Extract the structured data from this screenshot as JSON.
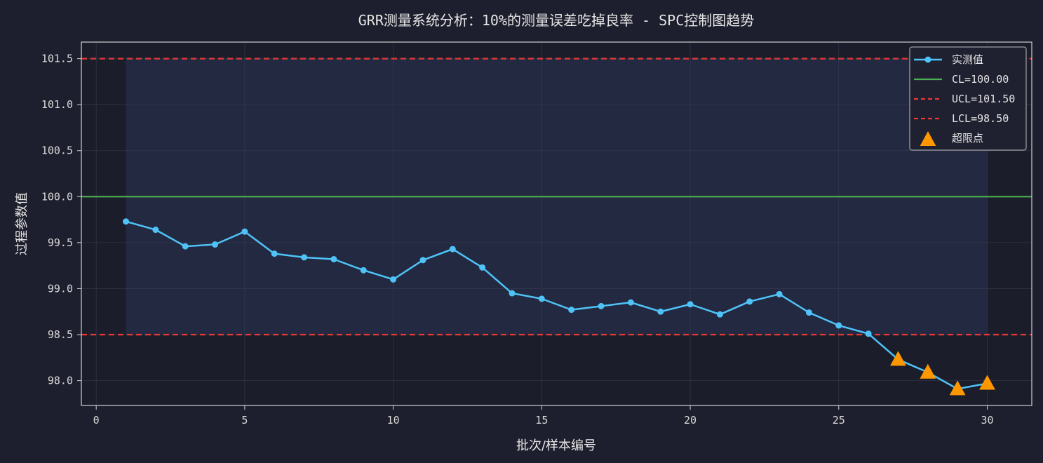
{
  "chart_data": {
    "type": "line",
    "title": "GRR测量系统分析：10%的测量误差吃掉良率 - SPC控制图趋势",
    "xlabel": "批次/样本编号",
    "ylabel": "过程参数值",
    "xlim": [
      -0.5,
      31.5
    ],
    "ylim": [
      97.73,
      101.68
    ],
    "xticks": [
      0,
      5,
      10,
      15,
      20,
      25,
      30
    ],
    "yticks": [
      98.0,
      98.5,
      99.0,
      99.5,
      100.0,
      100.5,
      101.0,
      101.5
    ],
    "xtick_labels": [
      "0",
      "5",
      "10",
      "15",
      "20",
      "25",
      "30"
    ],
    "ytick_labels": [
      "98.0",
      "98.5",
      "99.0",
      "99.5",
      "100.0",
      "100.5",
      "101.0",
      "101.5"
    ],
    "grid": true,
    "legend_position": "top-right",
    "x": [
      1,
      2,
      3,
      4,
      5,
      6,
      7,
      8,
      9,
      10,
      11,
      12,
      13,
      14,
      15,
      16,
      17,
      18,
      19,
      20,
      21,
      22,
      23,
      24,
      25,
      26,
      27,
      28,
      29,
      30
    ],
    "series": [
      {
        "name": "实测值",
        "color": "#4fc3f7",
        "values": [
          99.73,
          99.64,
          99.46,
          99.48,
          99.62,
          99.38,
          99.34,
          99.32,
          99.2,
          99.1,
          99.31,
          99.43,
          99.23,
          98.95,
          98.89,
          98.77,
          98.81,
          98.85,
          98.75,
          98.83,
          98.72,
          98.86,
          98.94,
          98.74,
          98.6,
          98.51,
          98.23,
          98.09,
          97.91,
          97.97
        ]
      }
    ],
    "control_lines": [
      {
        "name": "CL=100.00",
        "value": 100.0,
        "color": "#4caf50",
        "style": "solid"
      },
      {
        "name": "UCL=101.50",
        "value": 101.5,
        "color": "#e53935",
        "style": "dashed"
      },
      {
        "name": "LCL=98.50",
        "value": 98.5,
        "color": "#e53935",
        "style": "dashed"
      }
    ],
    "out_of_limit": {
      "name": "超限点",
      "color": "#ff9800",
      "x": [
        27,
        28,
        29,
        30
      ],
      "y": [
        98.23,
        98.09,
        97.91,
        97.97
      ]
    },
    "shaded_band": {
      "x_range": [
        1,
        30
      ],
      "y_range": [
        98.5,
        101.5
      ],
      "color": "#2a3a5a"
    }
  }
}
